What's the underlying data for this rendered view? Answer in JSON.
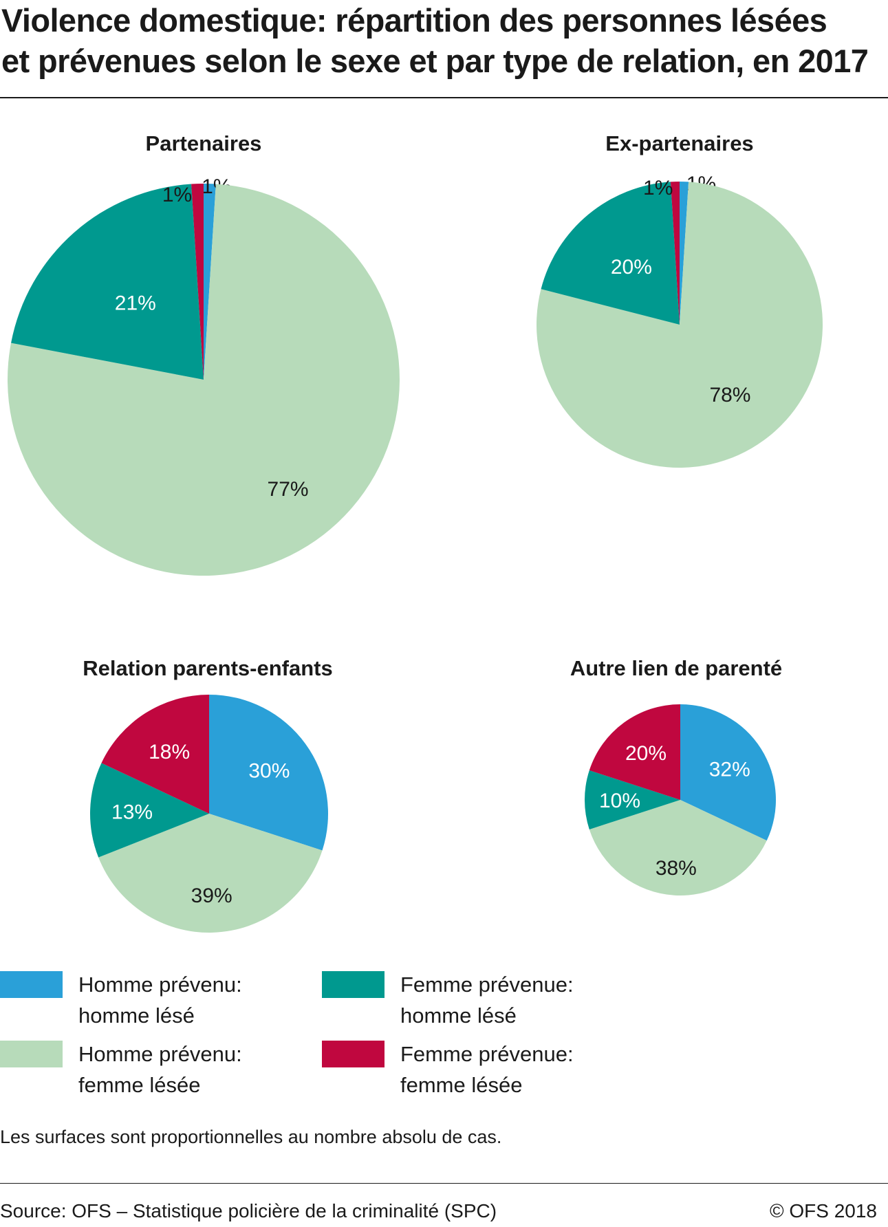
{
  "title_line1": "Violence domestique: répartition des personnes lésées",
  "title_line2": "et prévenues selon le sexe et par type de relation, en 2017",
  "colors": {
    "homme_prevenu_homme_lese": "#2aa0d8",
    "homme_prevenu_femme_lesee": "#b7dbba",
    "femme_prevenue_homme_lese": "#00998f",
    "femme_prevenue_femme_lesee": "#c0073f"
  },
  "chart_data": [
    {
      "type": "pie",
      "title": "Partenaires",
      "categories": [
        "Homme prévenu: homme lésé",
        "Homme prévenu: femme lésée",
        "Femme prévenue: homme lésé",
        "Femme prévenue: femme lésée"
      ],
      "values": [
        1,
        77,
        21,
        1
      ],
      "labels": [
        "1%",
        "77%",
        "21%",
        "1%"
      ]
    },
    {
      "type": "pie",
      "title": "Ex-partenaires",
      "categories": [
        "Homme prévenu: homme lésé",
        "Homme prévenu: femme lésée",
        "Femme prévenue: homme lésé",
        "Femme prévenue: femme lésée"
      ],
      "values": [
        1,
        78,
        20,
        1
      ],
      "labels": [
        "1%",
        "78%",
        "20%",
        "1%"
      ]
    },
    {
      "type": "pie",
      "title": "Relation parents-enfants",
      "categories": [
        "Homme prévenu: homme lésé",
        "Homme prévenu: femme lésée",
        "Femme prévenue: homme lésé",
        "Femme prévenue: femme lésée"
      ],
      "values": [
        30,
        39,
        13,
        18
      ],
      "labels": [
        "30%",
        "39%",
        "13%",
        "18%"
      ]
    },
    {
      "type": "pie",
      "title": "Autre lien de parenté",
      "categories": [
        "Homme prévenu: homme lésé",
        "Homme prévenu: femme lésée",
        "Femme prévenue: homme lésé",
        "Femme prévenue: femme lésée"
      ],
      "values": [
        32,
        38,
        10,
        20
      ],
      "labels": [
        "32%",
        "38%",
        "10%",
        "20%"
      ]
    }
  ],
  "legend": [
    {
      "label": "Homme prévenu:\nhomme lésé",
      "color": "#2aa0d8"
    },
    {
      "label": "Femme prévenue:\nhomme lésé",
      "color": "#00998f"
    },
    {
      "label": "Homme prévenu:\nfemme lésée",
      "color": "#b7dbba"
    },
    {
      "label": "Femme prévenue:\nfemme lésée",
      "color": "#c0073f"
    }
  ],
  "note": "Les surfaces sont proportionnelles au nombre absolu de cas.",
  "source": "Source: OFS – Statistique policière de la criminalité (SPC)",
  "copyright": "© OFS 2018"
}
